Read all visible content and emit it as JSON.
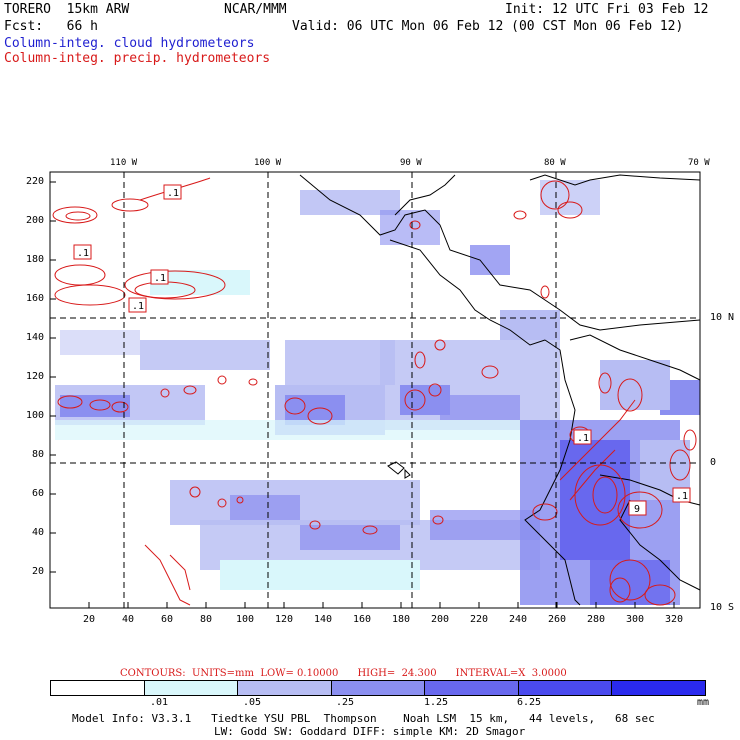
{
  "header": {
    "model": "TORERO  15km ARW",
    "org": "NCAR/MMM",
    "init": "Init: 12 UTC Fri 03 Feb 12",
    "fcst": "Fcst:   66 h",
    "valid": "Valid: 06 UTC Mon 06 Feb 12 (00 CST Mon 06 Feb 12)",
    "field_cloud": "Column-integ. cloud hydrometeors",
    "field_precip": "Column-integ. precip. hydrometeors"
  },
  "axes": {
    "top_labels": [
      "110 W",
      "100 W",
      "90 W",
      "80 W",
      "70 W"
    ],
    "right_labels": [
      "10 N",
      "0",
      "10 S"
    ],
    "left_ticks": [
      "220",
      "200",
      "180",
      "160",
      "140",
      "120",
      "100",
      "80",
      "60",
      "40",
      "20"
    ],
    "bottom_ticks": [
      "20",
      "40",
      "60",
      "80",
      "100",
      "120",
      "140",
      "160",
      "180",
      "200",
      "220",
      "240",
      "260",
      "280",
      "300",
      "320"
    ]
  },
  "contour_info": "CONTOURS:  UNITS=mm  LOW= 0.10000      HIGH=  24.300      INTERVAL=X  3.0000",
  "colorbar": {
    "labels": [
      ".01",
      ".05",
      ".25",
      "1.25",
      "6.25"
    ],
    "units": "mm",
    "colors": [
      "#ffffff",
      "#d9f7fb",
      "#b7bdf3",
      "#8b8ff0",
      "#6868ee",
      "#4a4aee",
      "#2a2aee"
    ]
  },
  "contour_labels": [
    ".1",
    ".1",
    ".1",
    ".1",
    ".1",
    "9",
    ".1"
  ],
  "footer": {
    "line1": "Model Info: V3.3.1   Tiedtke YSU PBL  Thompson    Noah LSM  15 km,   44 levels,   68 sec",
    "line2": "LW: Godd SW: Goddard DIFF: simple KM: 2D Smagor"
  }
}
